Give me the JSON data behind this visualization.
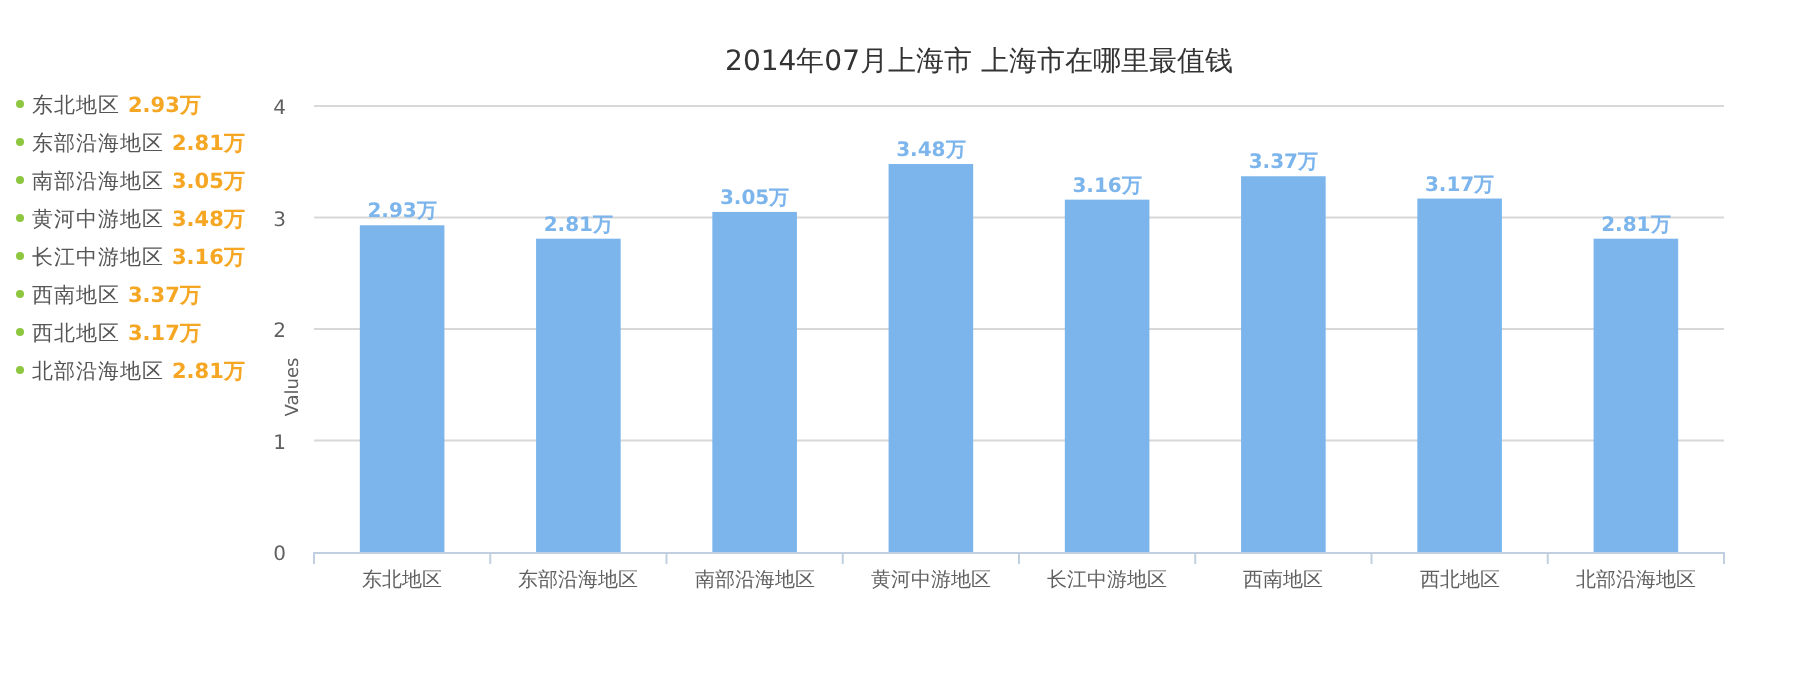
{
  "chart_data": {
    "type": "bar",
    "title": "2014年07月上海市 上海市在哪里最值钱",
    "ylabel": "Values",
    "categories": [
      "东北地区",
      "东部沿海地区",
      "南部沿海地区",
      "黄河中游地区",
      "长江中游地区",
      "西南地区",
      "西北地区",
      "北部沿海地区"
    ],
    "values": [
      2.93,
      2.81,
      3.05,
      3.48,
      3.16,
      3.37,
      3.17,
      2.81
    ],
    "value_labels": [
      "2.93万",
      "2.81万",
      "3.05万",
      "3.48万",
      "3.16万",
      "3.37万",
      "3.17万",
      "2.81万"
    ],
    "color": "#7cb5ec",
    "ylim": [
      0,
      4
    ],
    "yticks": [
      0,
      1,
      2,
      3,
      4
    ],
    "grid": "y"
  }
}
